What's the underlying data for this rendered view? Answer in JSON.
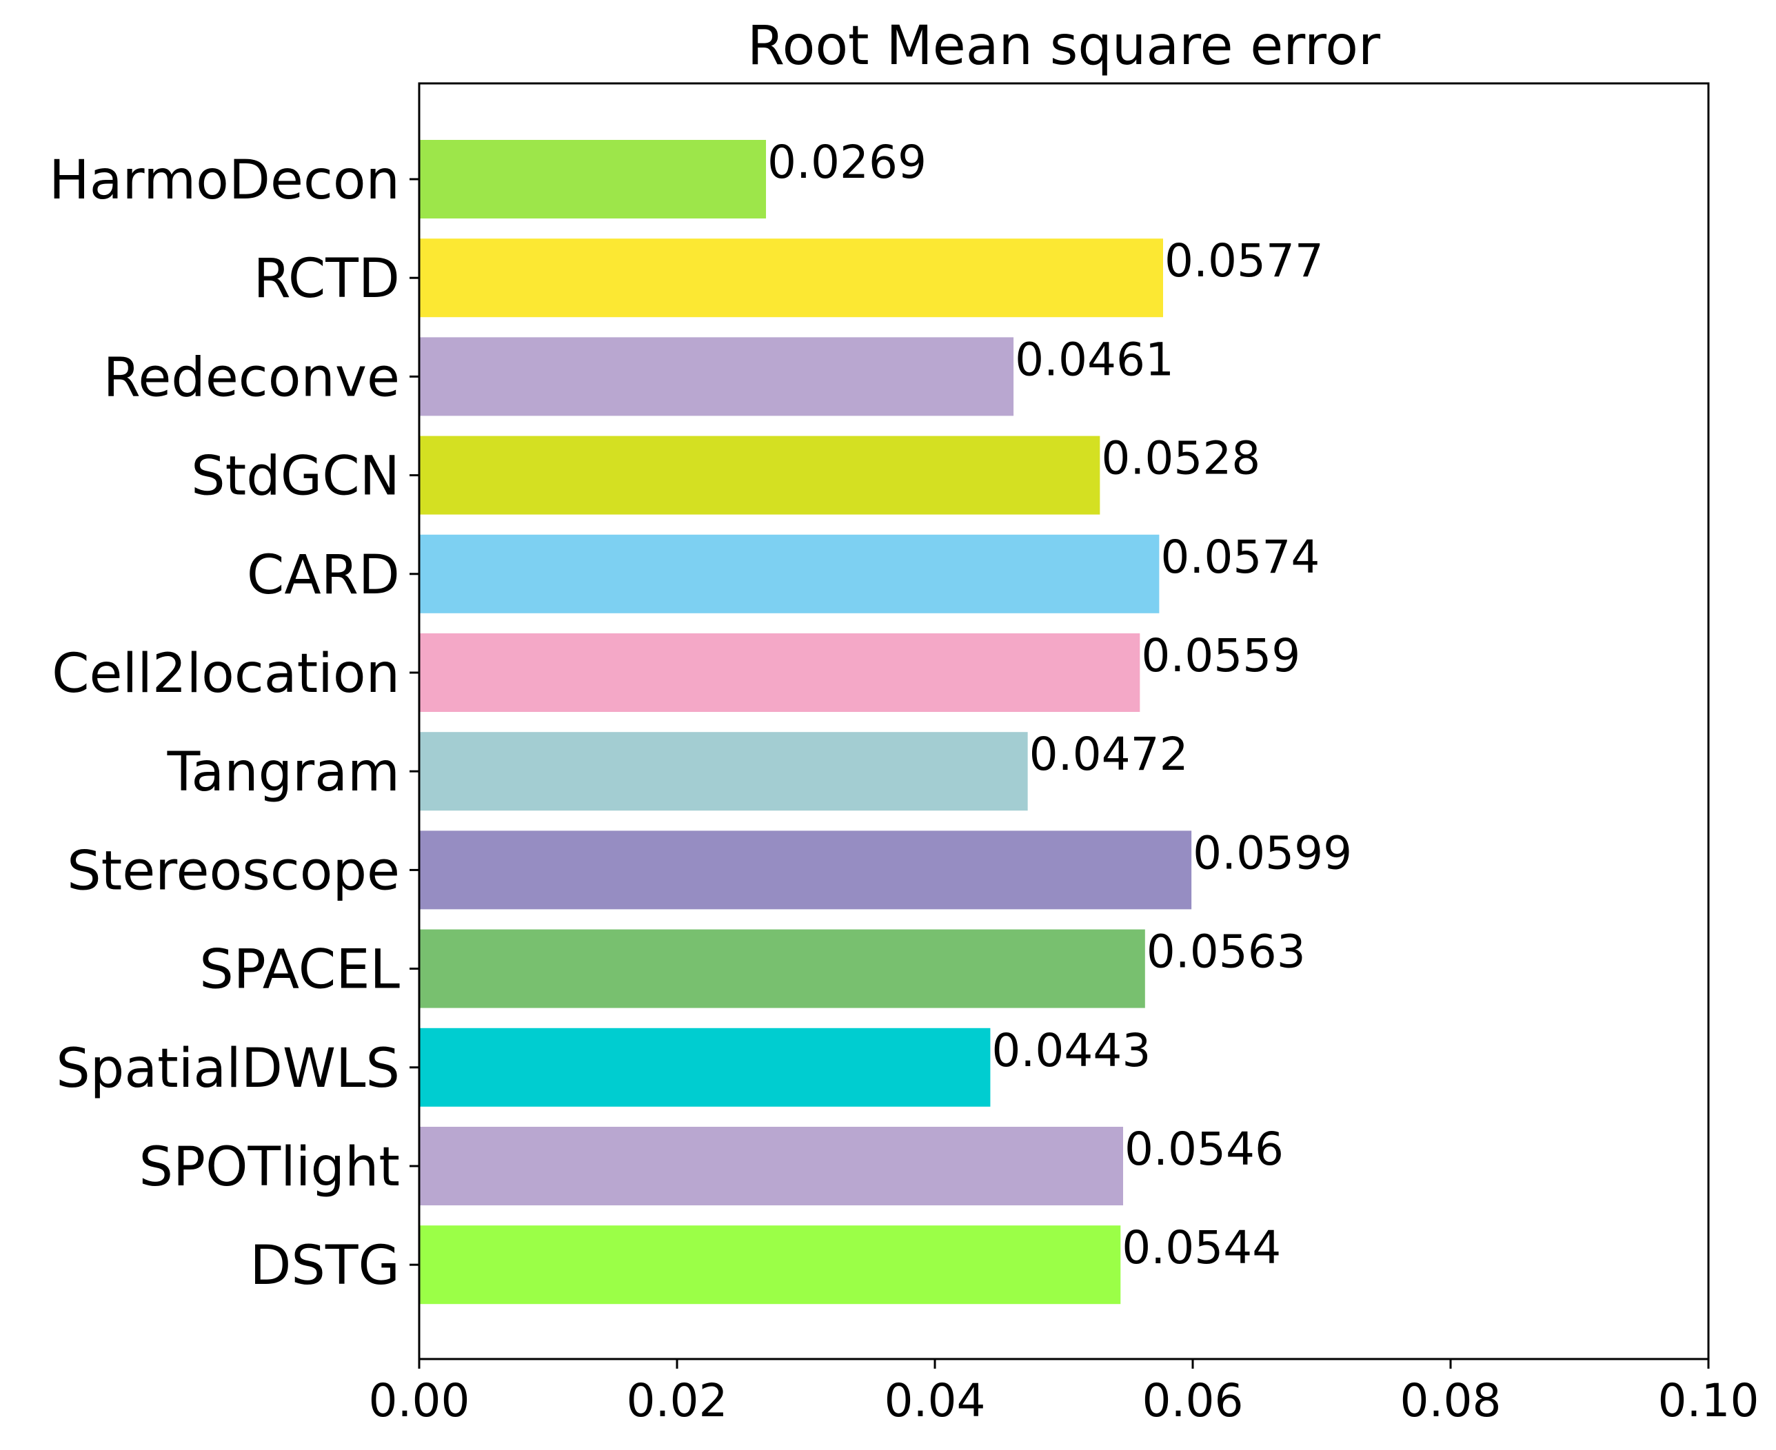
{
  "chart_data": {
    "type": "bar",
    "orientation": "horizontal",
    "title": "Root Mean square error",
    "xlabel": "",
    "ylabel": "",
    "xlim": [
      0.0,
      0.1
    ],
    "xticks": [
      "0.00",
      "0.02",
      "0.04",
      "0.06",
      "0.08",
      "0.10"
    ],
    "xtick_values": [
      0.0,
      0.02,
      0.04,
      0.06,
      0.08,
      0.1
    ],
    "grid": false,
    "legend": "none",
    "categories": [
      "HarmoDecon",
      "RCTD",
      "Redeconve",
      "StdGCN",
      "CARD",
      "Cell2location",
      "Tangram",
      "Stereoscope",
      "SPACEL",
      "SpatialDWLS",
      "SPOTlight",
      "DSTG"
    ],
    "values": [
      0.0269,
      0.0577,
      0.0461,
      0.0528,
      0.0574,
      0.0559,
      0.0472,
      0.0599,
      0.0563,
      0.0443,
      0.0546,
      0.0544
    ],
    "value_labels": [
      "0.0269",
      "0.0577",
      "0.0461",
      "0.0528",
      "0.0574",
      "0.0559",
      "0.0472",
      "0.0599",
      "0.0563",
      "0.0443",
      "0.0546",
      "0.0544"
    ],
    "colors": [
      "#9de64a",
      "#fce833",
      "#b9a7d0",
      "#d4e022",
      "#7dd0f2",
      "#f4a8c7",
      "#a3cdd2",
      "#968dc2",
      "#78c06f",
      "#00cdd0",
      "#b9a7d0",
      "#9bff47"
    ]
  }
}
